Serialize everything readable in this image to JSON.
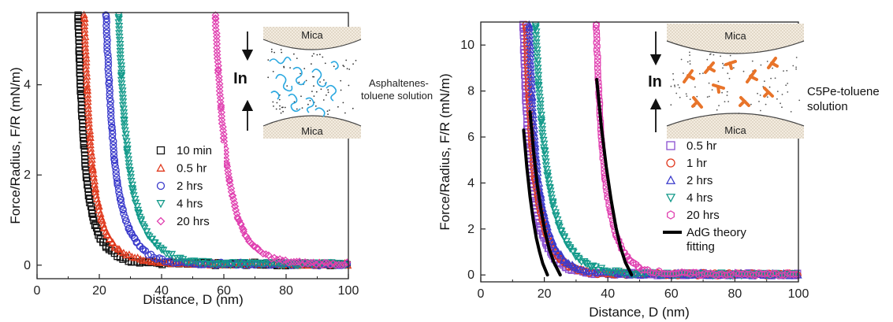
{
  "chart_data": [
    {
      "type": "scatter",
      "xlabel": "Distance, D (nm)",
      "ylabel": "Force/Radius, F/R (mN/m)",
      "xlim": [
        0,
        100
      ],
      "ylim": [
        -0.3,
        5.6
      ],
      "xticks": [
        0,
        20,
        40,
        60,
        80,
        100
      ],
      "yticks": [
        0,
        2,
        4
      ],
      "legend_position": "center",
      "series": [
        {
          "name": "10 min",
          "color": "#111111",
          "marker": "square",
          "D0": 13,
          "x": [
            13.2,
            13.8,
            14.6,
            15.5,
            16.7,
            18.2,
            20,
            22.5,
            26,
            30,
            40,
            50,
            60,
            70,
            80,
            90,
            100
          ],
          "y": [
            5.5,
            4.2,
            3.1,
            2.2,
            1.5,
            1.0,
            0.62,
            0.38,
            0.2,
            0.1,
            0.04,
            0.03,
            0.02,
            0.03,
            0.02,
            0.02,
            0.02
          ]
        },
        {
          "name": "0.5 hr",
          "color": "#e03a1e",
          "marker": "triangle",
          "D0": 15,
          "x": [
            15.2,
            15.8,
            16.6,
            17.6,
            18.9,
            20.5,
            22.5,
            25,
            28.5,
            33,
            40,
            50,
            60,
            70,
            80,
            90,
            100
          ],
          "y": [
            5.5,
            4.3,
            3.2,
            2.3,
            1.6,
            1.05,
            0.68,
            0.42,
            0.24,
            0.12,
            0.06,
            0.04,
            0.03,
            0.03,
            0.02,
            0.02,
            0.02
          ]
        },
        {
          "name": "2 hrs",
          "color": "#3a3acb",
          "marker": "circle",
          "D0": 22,
          "x": [
            22.2,
            22.9,
            23.8,
            24.9,
            26.3,
            28,
            30,
            32.5,
            35.5,
            39,
            44,
            50,
            60,
            70,
            80,
            90,
            100
          ],
          "y": [
            5.5,
            4.3,
            3.2,
            2.3,
            1.6,
            1.1,
            0.72,
            0.45,
            0.26,
            0.14,
            0.07,
            0.04,
            0.03,
            0.03,
            0.02,
            0.02,
            0.02
          ]
        },
        {
          "name": "4 hrs",
          "color": "#139a8a",
          "marker": "triangle-down",
          "D0": 26,
          "x": [
            26.2,
            27,
            28,
            29.3,
            30.9,
            33,
            35.5,
            38.5,
            42,
            46,
            52,
            60,
            70,
            80,
            90,
            100
          ],
          "y": [
            5.5,
            4.3,
            3.2,
            2.3,
            1.6,
            1.05,
            0.68,
            0.42,
            0.25,
            0.13,
            0.06,
            0.04,
            0.03,
            0.03,
            0.03,
            0.03
          ]
        },
        {
          "name": "20 hrs",
          "color": "#e040b0",
          "marker": "diamond",
          "D0": 57,
          "x": [
            57.3,
            58.2,
            59.4,
            60.8,
            62.5,
            64.5,
            66.8,
            69.5,
            72.5,
            76,
            80,
            85,
            90,
            95,
            100
          ],
          "y": [
            5.5,
            4.3,
            3.2,
            2.3,
            1.6,
            1.05,
            0.68,
            0.42,
            0.26,
            0.15,
            0.08,
            0.05,
            0.04,
            0.03,
            0.03
          ]
        }
      ],
      "inset": {
        "top_label": "Mica",
        "bottom_label": "Mica",
        "in_label": "In",
        "solution_label_lines": [
          "Asphaltenes-",
          "toluene solution"
        ],
        "squiggle_color": "#2aa8e0"
      }
    },
    {
      "type": "scatter",
      "xlabel": "Distance, D (nm)",
      "ylabel": "Force/Radius, F/R (mN/m)",
      "xlim": [
        0,
        100
      ],
      "ylim": [
        -0.3,
        11
      ],
      "xticks": [
        0,
        20,
        40,
        60,
        80,
        100
      ],
      "yticks": [
        0,
        2,
        4,
        6,
        8,
        10
      ],
      "legend_position": "lower-center",
      "series": [
        {
          "name": "0.5 hr",
          "color": "#8a4fd0",
          "marker": "square",
          "D0": 13,
          "x": [
            13.3,
            14,
            14.8,
            15.9,
            17.2,
            19,
            21.2,
            24,
            28,
            35,
            45,
            55,
            65,
            75,
            85,
            95,
            100
          ],
          "y": [
            10.8,
            8.2,
            6.0,
            4.2,
            2.9,
            1.9,
            1.15,
            0.6,
            0.25,
            0.08,
            0.04,
            0.03,
            0.03,
            0.03,
            0.02,
            0.02,
            0.02
          ]
        },
        {
          "name": "1 hr",
          "color": "#e0381e",
          "marker": "circle",
          "D0": 14,
          "x": [
            14.3,
            15,
            15.9,
            17,
            18.5,
            20.3,
            22.5,
            25.5,
            29.5,
            36,
            45,
            55,
            65,
            75,
            85,
            95,
            100
          ],
          "y": [
            10.8,
            8.2,
            6.0,
            4.2,
            2.9,
            1.9,
            1.15,
            0.6,
            0.25,
            0.09,
            0.05,
            0.04,
            0.03,
            0.03,
            0.02,
            0.02,
            0.02
          ]
        },
        {
          "name": "2 hrs",
          "color": "#3a3acb",
          "marker": "triangle",
          "D0": 15,
          "x": [
            15.3,
            16,
            16.9,
            18,
            19.5,
            21.3,
            23.5,
            26.5,
            30.5,
            37,
            45,
            55,
            65,
            75,
            85,
            95,
            100
          ],
          "y": [
            10.8,
            8.2,
            6.0,
            4.2,
            2.9,
            1.9,
            1.15,
            0.6,
            0.25,
            0.09,
            0.05,
            0.04,
            0.03,
            0.03,
            0.02,
            0.02,
            0.02
          ]
        },
        {
          "name": "4 hrs",
          "color": "#139a8a",
          "marker": "triangle-down",
          "D0": 17,
          "x": [
            17.3,
            18.2,
            19.4,
            20.9,
            22.8,
            25.1,
            27.8,
            31,
            35,
            40,
            46,
            55,
            65,
            75,
            85,
            95,
            100
          ],
          "y": [
            10.8,
            8.3,
            6.2,
            4.4,
            3.0,
            1.95,
            1.2,
            0.68,
            0.35,
            0.17,
            0.08,
            0.05,
            0.04,
            0.03,
            0.03,
            0.03,
            0.03
          ]
        },
        {
          "name": "20 hrs",
          "color": "#e040b0",
          "marker": "hexagon",
          "D0": 36,
          "x": [
            36.3,
            37,
            37.9,
            39,
            40.5,
            42.2,
            44.3,
            47,
            50.5,
            55,
            60,
            65,
            70,
            80,
            90,
            100
          ],
          "y": [
            10.8,
            8.2,
            6.0,
            4.2,
            2.9,
            1.9,
            1.15,
            0.6,
            0.28,
            0.12,
            0.07,
            0.05,
            0.04,
            0.03,
            0.03,
            0.03
          ]
        }
      ],
      "fits": {
        "name": "AdG theory fitting",
        "name_lines": [
          "AdG theory",
          "fitting"
        ],
        "color": "#000000",
        "curves": [
          {
            "x": [
              13.5,
              14.5,
              15.5,
              16.5,
              17.5,
              18.5,
              19.5,
              21
            ],
            "y": [
              6.3,
              4.7,
              3.4,
              2.4,
              1.6,
              1.0,
              0.5,
              0.0
            ]
          },
          {
            "x": [
              15.5,
              16.6,
              17.8,
              19,
              20.2,
              21.5,
              23,
              25
            ],
            "y": [
              7.1,
              5.4,
              3.9,
              2.8,
              1.9,
              1.15,
              0.55,
              0.0
            ]
          },
          {
            "x": [
              36.5,
              38,
              39.5,
              41,
              42.5,
              44,
              45.5,
              47.5
            ],
            "y": [
              8.5,
              6.4,
              4.7,
              3.3,
              2.1,
              1.2,
              0.55,
              0.0
            ]
          }
        ]
      },
      "inset": {
        "top_label": "Mica",
        "bottom_label": "Mica",
        "in_label": "In",
        "solution_label_lines": [
          "C5Pe-toluene",
          "solution"
        ],
        "molecule_color": "#e8742a"
      }
    }
  ]
}
